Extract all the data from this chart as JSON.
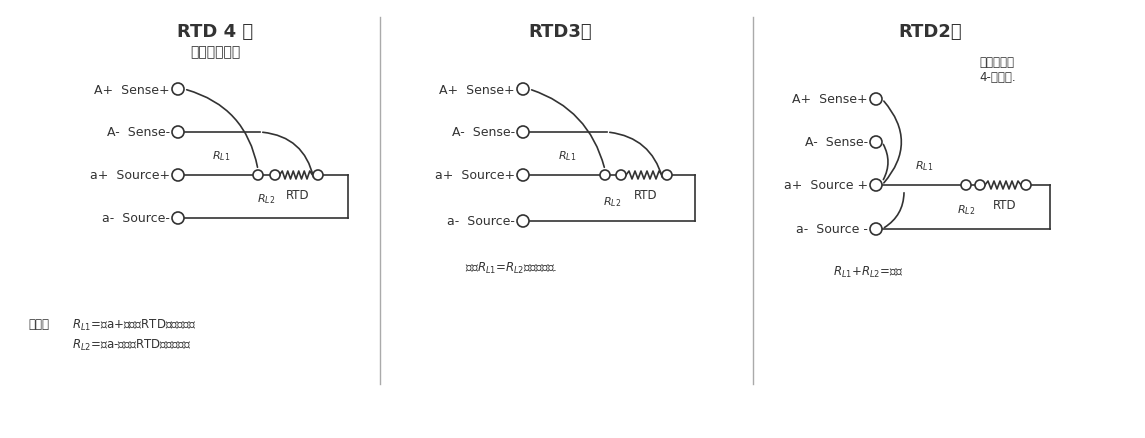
{
  "bg_color": "#ffffff",
  "line_color": "#333333",
  "title1": "RTD 4 线",
  "subtitle1": "（精度最高）",
  "title2": "RTD3线",
  "title3": "RTD2线",
  "labels_col1": [
    "A+  Sense+",
    "A-  Sense-",
    "a+  Source+",
    "a-  Source-"
  ],
  "labels_col2": [
    "A+  Sense+",
    "A-  Sense-",
    "a+  Source+",
    "a-  Source-"
  ],
  "labels_col3": [
    "A+  Sense+",
    "A-  Sense-",
    "a+  Source +",
    "a-  Source -"
  ],
  "note_label": "注意：",
  "note_line1": "R_L1=从a+端子到RTD的导线电阻",
  "note_line2": "R_L2=从a-端子到RTD的导线电阻",
  "caption2": "如果R_L1=R_L2，误差最小.",
  "caption3": "R_L1+R_L2=误差",
  "switch_note": "设置开关到\n4-线模式.",
  "font_size_title": 13,
  "font_size_label": 9,
  "font_size_note": 8.5
}
